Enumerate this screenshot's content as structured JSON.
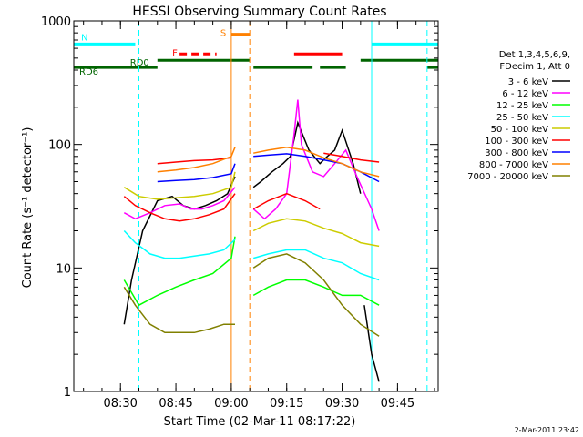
{
  "chart_data": {
    "type": "line",
    "title": "HESSI Observing Summary Count Rates",
    "xlabel": "Start Time (02-Mar-11 08:17:22)",
    "ylabel": "Count Rate (s⁻¹ detector⁻¹)",
    "yscale": "log",
    "ylim": [
      1,
      1000
    ],
    "xlim": [
      "08:17:22",
      "09:56:00"
    ],
    "x_ticks": [
      "08:30",
      "08:45",
      "09:00",
      "09:15",
      "09:30",
      "09:45"
    ],
    "y_ticks": [
      "1",
      "10",
      "100",
      "1000"
    ],
    "grid": false,
    "legend_position": "right",
    "legend_header": [
      "Det 1,3,4,5,6,9,",
      "FDecim 1, Att 0"
    ],
    "footer_date": "2-Mar-2011 23:42",
    "series": [
      {
        "name": "3 - 6 keV",
        "color": "#000000",
        "segments": [
          {
            "x": [
              "08:31",
              "08:33",
              "08:36",
              "08:40",
              "08:44",
              "08:47",
              "08:50",
              "08:53",
              "08:56",
              "08:59",
              "09:01"
            ],
            "y": [
              3.5,
              8,
              20,
              35,
              38,
              32,
              30,
              32,
              35,
              40,
              55
            ]
          },
          {
            "x": [
              "09:06",
              "09:08",
              "09:11",
              "09:14",
              "09:16",
              "09:18",
              "09:21",
              "09:24",
              "09:26",
              "09:28",
              "09:30",
              "09:33",
              "09:35"
            ],
            "y": [
              45,
              50,
              60,
              70,
              80,
              150,
              90,
              70,
              80,
              90,
              130,
              70,
              40
            ]
          },
          {
            "x": [
              "09:36",
              "09:38",
              "09:40"
            ],
            "y": [
              5,
              2,
              1.2
            ]
          }
        ]
      },
      {
        "name": "6 - 12 keV",
        "color": "#ff00ff",
        "segments": [
          {
            "x": [
              "08:31",
              "08:34",
              "08:38",
              "08:42",
              "08:46",
              "08:49",
              "08:52",
              "08:55",
              "08:58",
              "09:01"
            ],
            "y": [
              28,
              25,
              28,
              32,
              33,
              30,
              30,
              32,
              35,
              45
            ]
          },
          {
            "x": [
              "09:06",
              "09:09",
              "09:12",
              "09:15",
              "09:17",
              "09:18",
              "09:19",
              "09:22",
              "09:25",
              "09:28",
              "09:31",
              "09:34",
              "09:38",
              "09:40"
            ],
            "y": [
              30,
              25,
              30,
              40,
              120,
              230,
              100,
              60,
              55,
              70,
              90,
              55,
              30,
              20
            ]
          }
        ]
      },
      {
        "name": "12 - 25 keV",
        "color": "#00ff00",
        "segments": [
          {
            "x": [
              "08:31",
              "08:35",
              "08:40",
              "08:45",
              "08:50",
              "08:55",
              "09:00",
              "09:01"
            ],
            "y": [
              8,
              5,
              6,
              7,
              8,
              9,
              12,
              18
            ]
          },
          {
            "x": [
              "09:06",
              "09:10",
              "09:15",
              "09:20",
              "09:25",
              "09:30",
              "09:35",
              "09:40"
            ],
            "y": [
              6,
              7,
              8,
              8,
              7,
              6,
              6,
              5
            ]
          }
        ]
      },
      {
        "name": "25 - 50 keV",
        "color": "#00ffff",
        "segments": [
          {
            "x": [
              "08:31",
              "08:34",
              "08:38",
              "08:42",
              "08:46",
              "08:50",
              "08:54",
              "08:58",
              "09:01"
            ],
            "y": [
              20,
              16,
              13,
              12,
              12,
              12.5,
              13,
              14,
              17
            ]
          },
          {
            "x": [
              "09:06",
              "09:10",
              "09:15",
              "09:20",
              "09:25",
              "09:30",
              "09:35",
              "09:40"
            ],
            "y": [
              12,
              13,
              14,
              14,
              12,
              11,
              9,
              8
            ]
          }
        ]
      },
      {
        "name": "50 - 100 keV",
        "color": "#cccc00",
        "segments": [
          {
            "x": [
              "08:31",
              "08:35",
              "08:40",
              "08:45",
              "08:50",
              "08:55",
              "09:00",
              "09:01"
            ],
            "y": [
              45,
              38,
              36,
              37,
              38,
              40,
              45,
              60
            ]
          },
          {
            "x": [
              "09:06",
              "09:10",
              "09:15",
              "09:20",
              "09:25",
              "09:30",
              "09:35",
              "09:40"
            ],
            "y": [
              20,
              23,
              25,
              24,
              21,
              19,
              16,
              15
            ]
          }
        ]
      },
      {
        "name": "100 - 300 keV",
        "color": "#ff0000",
        "segments": [
          {
            "x": [
              "08:31",
              "08:34",
              "08:38",
              "08:42",
              "08:46",
              "08:50",
              "08:54",
              "08:58",
              "09:01"
            ],
            "y": [
              38,
              32,
              28,
              25,
              24,
              25,
              27,
              30,
              40
            ]
          },
          {
            "x": [
              "09:06",
              "09:10",
              "09:15",
              "09:20",
              "09:24"
            ],
            "y": [
              30,
              35,
              40,
              35,
              30
            ]
          },
          {
            "x": [
              "09:25",
              "09:30",
              "09:35",
              "09:40"
            ],
            "y": [
              85,
              80,
              75,
              72
            ]
          },
          {
            "x": [
              "08:40",
              "08:45",
              "08:50",
              "08:55",
              "09:00"
            ],
            "y": [
              70,
              72,
              74,
              75,
              78
            ]
          }
        ]
      },
      {
        "name": "300 - 800 keV",
        "color": "#0000ff",
        "segments": [
          {
            "x": [
              "08:40",
              "08:45",
              "08:50",
              "08:55",
              "09:00",
              "09:01"
            ],
            "y": [
              50,
              51,
              52,
              54,
              58,
              70
            ]
          },
          {
            "x": [
              "09:06",
              "09:10",
              "09:15",
              "09:20",
              "09:25",
              "09:30",
              "09:35",
              "09:40"
            ],
            "y": [
              80,
              82,
              84,
              80,
              75,
              70,
              60,
              50
            ]
          }
        ]
      },
      {
        "name": "800 - 7000 keV",
        "color": "#ff8000",
        "segments": [
          {
            "x": [
              "08:40",
              "08:45",
              "08:50",
              "08:55",
              "09:00",
              "09:01"
            ],
            "y": [
              60,
              62,
              65,
              70,
              80,
              95
            ]
          },
          {
            "x": [
              "09:06",
              "09:10",
              "09:15",
              "09:20",
              "09:25",
              "09:30",
              "09:35",
              "09:40"
            ],
            "y": [
              85,
              90,
              95,
              90,
              78,
              70,
              60,
              55
            ]
          }
        ]
      },
      {
        "name": "7000 - 20000 keV",
        "color": "#808000",
        "segments": [
          {
            "x": [
              "08:31",
              "08:34",
              "08:38",
              "08:42",
              "08:46",
              "08:50",
              "08:54",
              "08:58",
              "09:01"
            ],
            "y": [
              7,
              5,
              3.5,
              3,
              3,
              3,
              3.2,
              3.5,
              3.5
            ]
          },
          {
            "x": [
              "09:06",
              "09:10",
              "09:15",
              "09:20",
              "09:25",
              "09:30",
              "09:35",
              "09:40"
            ],
            "y": [
              10,
              12,
              13,
              11,
              8,
              5,
              3.5,
              2.8
            ]
          }
        ]
      }
    ],
    "flag_bars": [
      {
        "label": "N",
        "color": "#00ffff",
        "y": 650,
        "dash": false,
        "spans": [
          [
            "08:17:22",
            "08:34"
          ],
          [
            "09:38",
            "09:56"
          ]
        ]
      },
      {
        "label": "S",
        "color": "#ff8000",
        "y": 780,
        "dash": false,
        "spans": [
          [
            "09:00",
            "09:05"
          ]
        ]
      },
      {
        "label": "F",
        "color": "#ff0000",
        "y": 540,
        "dash": true,
        "spans": [
          [
            "08:46",
            "08:56"
          ]
        ]
      },
      {
        "label": "",
        "color": "#ff0000",
        "y": 540,
        "dash": false,
        "spans": [
          [
            "09:17",
            "09:30"
          ]
        ]
      },
      {
        "label": "RD0",
        "color": "#006400",
        "y": 480,
        "dash": false,
        "spans": [
          [
            "08:40",
            "09:05"
          ],
          [
            "09:35",
            "09:56"
          ]
        ]
      },
      {
        "label": "RD6",
        "color": "#006400",
        "y": 420,
        "dash": false,
        "spans": [
          [
            "08:17:22",
            "08:40"
          ],
          [
            "09:06",
            "09:22"
          ],
          [
            "09:24",
            "09:31"
          ],
          [
            "09:53",
            "09:56"
          ]
        ]
      }
    ],
    "vlines": [
      {
        "x": "08:35",
        "color": "#00ffff",
        "dash": true
      },
      {
        "x": "09:38",
        "color": "#00ffff",
        "dash": false
      },
      {
        "x": "09:53",
        "color": "#00ffff",
        "dash": true
      },
      {
        "x": "09:00",
        "color": "#ff8000",
        "dash": false
      },
      {
        "x": "09:05",
        "color": "#ff8000",
        "dash": true
      }
    ]
  }
}
